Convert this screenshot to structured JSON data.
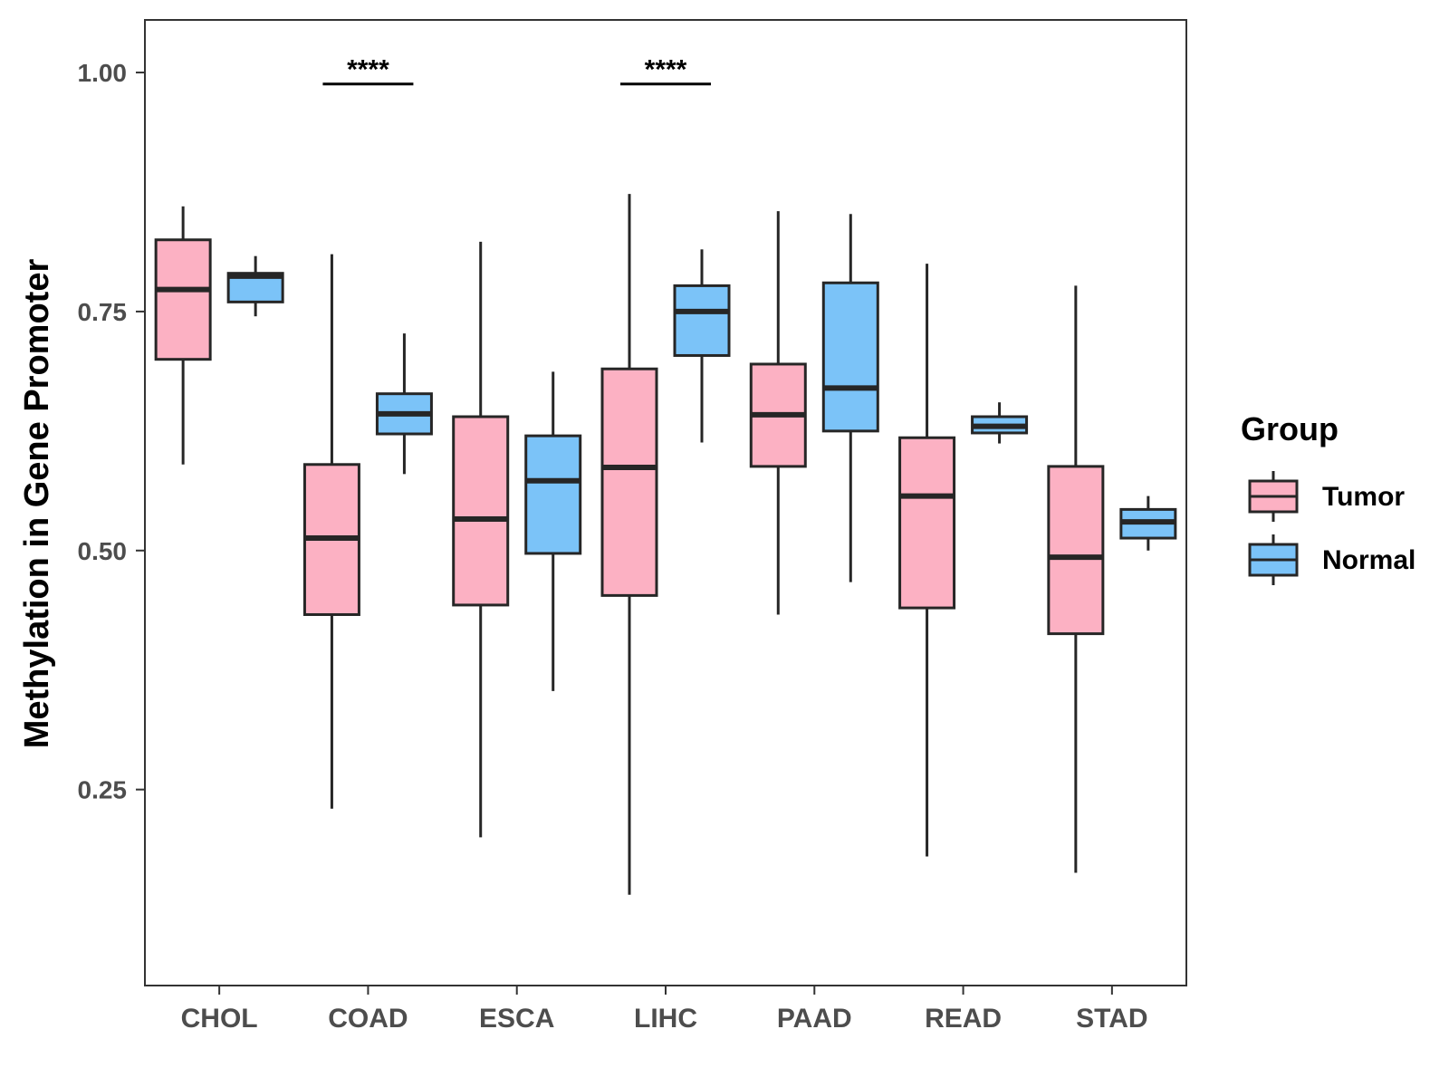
{
  "chart_data": {
    "type": "boxplot",
    "ylabel": "Methylation in Gene Promoter",
    "xlabel": "",
    "ylim": [
      0.045,
      1.055
    ],
    "yticks": [
      0.25,
      0.5,
      0.75,
      1.0
    ],
    "ytick_labels": [
      "0.25",
      "0.50",
      "0.75",
      "1.00"
    ],
    "categories": [
      "CHOL",
      "COAD",
      "ESCA",
      "LIHC",
      "PAAD",
      "READ",
      "STAD"
    ],
    "groups": [
      {
        "name": "Tumor",
        "color": "#FCB1C3"
      },
      {
        "name": "Normal",
        "color": "#7BC3F8"
      }
    ],
    "legend": {
      "title": "Group",
      "position": "right"
    },
    "series": [
      {
        "name": "Tumor",
        "boxes": [
          {
            "category": "CHOL",
            "min": 0.59,
            "q1": 0.7,
            "median": 0.773,
            "q3": 0.825,
            "max": 0.86
          },
          {
            "category": "COAD",
            "min": 0.23,
            "q1": 0.433,
            "median": 0.513,
            "q3": 0.59,
            "max": 0.81
          },
          {
            "category": "ESCA",
            "min": 0.2,
            "q1": 0.443,
            "median": 0.533,
            "q3": 0.64,
            "max": 0.823
          },
          {
            "category": "LIHC",
            "min": 0.14,
            "q1": 0.453,
            "median": 0.587,
            "q3": 0.69,
            "max": 0.873
          },
          {
            "category": "PAAD",
            "min": 0.433,
            "q1": 0.588,
            "median": 0.642,
            "q3": 0.695,
            "max": 0.855
          },
          {
            "category": "READ",
            "min": 0.18,
            "q1": 0.44,
            "median": 0.557,
            "q3": 0.618,
            "max": 0.8
          },
          {
            "category": "STAD",
            "min": 0.163,
            "q1": 0.413,
            "median": 0.493,
            "q3": 0.588,
            "max": 0.777
          }
        ]
      },
      {
        "name": "Normal",
        "boxes": [
          {
            "category": "CHOL",
            "min": 0.745,
            "q1": 0.76,
            "median": 0.787,
            "q3": 0.79,
            "max": 0.808
          },
          {
            "category": "COAD",
            "min": 0.58,
            "q1": 0.622,
            "median": 0.643,
            "q3": 0.664,
            "max": 0.727
          },
          {
            "category": "ESCA",
            "min": 0.353,
            "q1": 0.497,
            "median": 0.573,
            "q3": 0.62,
            "max": 0.687
          },
          {
            "category": "LIHC",
            "min": 0.613,
            "q1": 0.704,
            "median": 0.75,
            "q3": 0.777,
            "max": 0.815
          },
          {
            "category": "PAAD",
            "min": 0.467,
            "q1": 0.625,
            "median": 0.67,
            "q3": 0.78,
            "max": 0.852
          },
          {
            "category": "READ",
            "min": 0.612,
            "q1": 0.623,
            "median": 0.63,
            "q3": 0.64,
            "max": 0.655
          },
          {
            "category": "STAD",
            "min": 0.5,
            "q1": 0.513,
            "median": 0.53,
            "q3": 0.543,
            "max": 0.557
          }
        ]
      }
    ],
    "annotations": [
      {
        "category": "COAD",
        "text": "****",
        "y": 0.988
      },
      {
        "category": "LIHC",
        "text": "****",
        "y": 0.988
      }
    ]
  }
}
